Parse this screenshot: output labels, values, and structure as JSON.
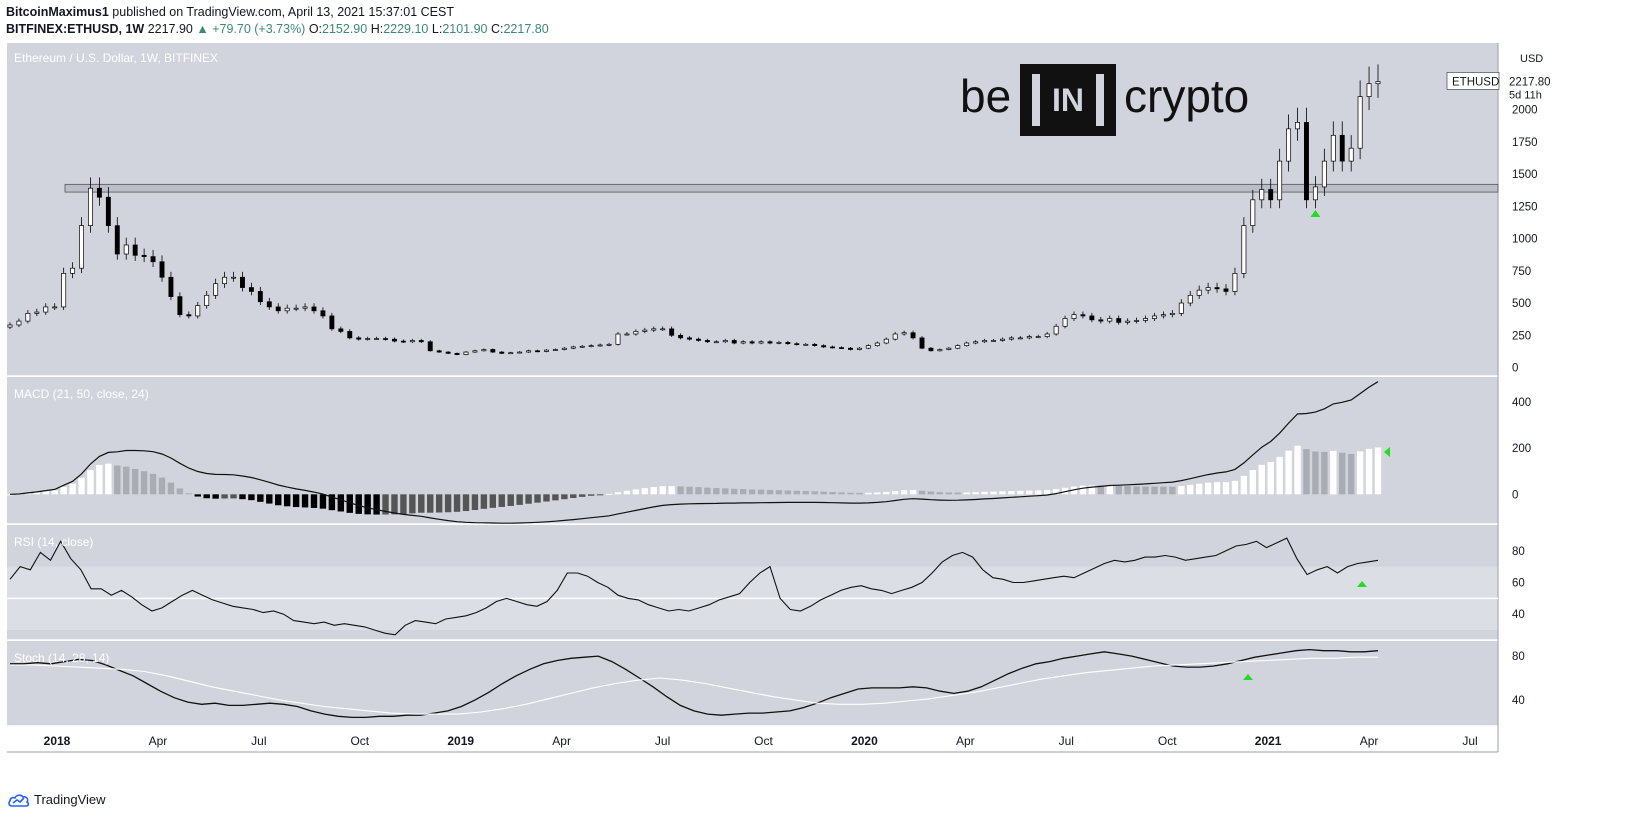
{
  "header": {
    "author": "BitcoinMaximus1",
    "published": "published on TradingView.com, April 13, 2021 15:37:01 CEST",
    "symbol": "BITFINEX:ETHUSD, 1W",
    "last": "2217.90",
    "change": "+79.70 (+3.73%)",
    "o_label": "O:",
    "o": "2152.90",
    "h_label": "H:",
    "h": "2229.10",
    "l_label": "L:",
    "l": "2101.90",
    "c_label": "C:",
    "c": "2217.80"
  },
  "logo": {
    "left": "be",
    "middle": "IN",
    "right": "crypto"
  },
  "price_tag": {
    "symbol": "ETHUSD",
    "price": "2217.80",
    "countdown": "5d 11h"
  },
  "footer": {
    "brand": "TradingView"
  },
  "colors": {
    "pane_bg": "#d1d4dc",
    "rsi_band": "#dbdee5",
    "up_candle": "#ffffff",
    "down_candle": "#000000",
    "signal_arrow": "#22dd22",
    "value_text": "#3a8a72"
  },
  "chart_data": [
    {
      "type": "candlestick",
      "title": "Ethereum / U.S. Dollar, 1W, BITFINEX",
      "ylabel": "USD",
      "ylim": [
        -50,
        2500
      ],
      "yticks": [
        0,
        250,
        500,
        750,
        1000,
        1250,
        1500,
        1750,
        2000
      ],
      "xticks": [
        "2018",
        "Apr",
        "Jul",
        "Oct",
        "2019",
        "Apr",
        "Jul",
        "Oct",
        "2020",
        "Apr",
        "Jul",
        "Oct",
        "2021",
        "Apr",
        "Jul"
      ],
      "xtick_weeks": [
        7,
        20,
        33,
        46,
        59,
        72,
        85,
        99,
        111,
        124,
        137,
        151,
        163,
        176,
        189
      ],
      "resistance_zone": [
        1360,
        1420
      ],
      "close": [
        330,
        360,
        420,
        430,
        470,
        470,
        730,
        770,
        1100,
        1390,
        1320,
        1100,
        880,
        950,
        870,
        860,
        820,
        700,
        550,
        410,
        400,
        480,
        560,
        650,
        700,
        700,
        620,
        590,
        510,
        470,
        440,
        460,
        460,
        470,
        440,
        400,
        300,
        280,
        230,
        220,
        225,
        225,
        220,
        205,
        200,
        210,
        200,
        130,
        120,
        110,
        100,
        120,
        130,
        140,
        120,
        110,
        115,
        120,
        130,
        125,
        135,
        140,
        150,
        160,
        165,
        170,
        175,
        180,
        260,
        260,
        280,
        290,
        300,
        300,
        250,
        230,
        220,
        210,
        200,
        200,
        210,
        190,
        200,
        190,
        200,
        190,
        195,
        185,
        180,
        180,
        170,
        160,
        155,
        150,
        140,
        150,
        170,
        190,
        220,
        260,
        270,
        230,
        150,
        130,
        140,
        150,
        170,
        190,
        200,
        210,
        210,
        220,
        230,
        230,
        240,
        240,
        260,
        320,
        380,
        410,
        400,
        370,
        360,
        380,
        350,
        360,
        365,
        380,
        400,
        410,
        420,
        500,
        560,
        600,
        620,
        610,
        590,
        730,
        1100,
        1300,
        1380,
        1300,
        1600,
        1850,
        1900,
        1300,
        1400,
        1600,
        1800,
        1600,
        1700,
        2100,
        2200,
        2217
      ]
    },
    {
      "type": "line+histogram",
      "title": "MACD (21, 50, close, 24)",
      "ylim": [
        -120,
        500
      ],
      "yticks": [
        0,
        200,
        400
      ],
      "signal_arrow": "left"
    },
    {
      "type": "line",
      "title": "RSI (14, close)",
      "ylim": [
        25,
        95
      ],
      "yticks": [
        40,
        60,
        80
      ],
      "band": [
        30,
        70
      ],
      "midline": 50,
      "values": [
        62,
        70,
        68,
        79,
        74,
        86,
        75,
        68,
        56,
        56,
        52,
        55,
        51,
        46,
        42,
        44,
        48,
        52,
        55,
        52,
        49,
        47,
        45,
        44,
        43,
        41,
        42,
        40,
        36,
        35,
        34,
        35,
        33,
        34,
        33,
        32,
        30,
        28,
        27,
        33,
        36,
        35,
        34,
        37,
        38,
        39,
        41,
        44,
        48,
        50,
        48,
        46,
        45,
        48,
        55,
        66,
        66,
        64,
        60,
        57,
        52,
        50,
        49,
        46,
        44,
        42,
        43,
        42,
        44,
        46,
        49,
        51,
        53,
        60,
        66,
        70,
        50,
        43,
        42,
        45,
        49,
        52,
        55,
        57,
        58,
        56,
        55,
        53,
        55,
        57,
        60,
        66,
        73,
        77,
        79,
        76,
        68,
        63,
        62,
        60,
        60,
        61,
        62,
        63,
        64,
        63,
        66,
        69,
        72,
        74,
        73,
        74,
        76,
        76,
        77,
        76,
        74,
        75,
        76,
        77,
        80,
        83,
        84,
        86,
        82,
        85,
        88,
        75,
        65,
        68,
        70,
        66,
        70,
        72,
        73,
        74
      ]
    },
    {
      "type": "line",
      "title": "Stoch (14, 28, 14)",
      "ylim": [
        18,
        92
      ],
      "yticks": [
        40,
        80
      ],
      "series": [
        {
          "values": [
            73,
            73,
            74,
            73,
            75,
            77,
            76,
            72,
            67,
            62,
            55,
            48,
            42,
            38,
            36,
            37,
            35,
            35,
            36,
            37,
            36,
            34,
            30,
            27,
            25,
            24,
            24,
            25,
            25,
            26,
            26,
            28,
            30,
            34,
            40,
            47,
            55,
            62,
            68,
            73,
            76,
            78,
            79,
            80,
            75,
            68,
            60,
            52,
            43,
            35,
            30,
            27,
            26,
            27,
            28,
            28,
            29,
            30,
            33,
            37,
            42,
            46,
            50,
            51,
            51,
            51,
            52,
            51,
            48,
            46,
            48,
            52,
            58,
            64,
            69,
            73,
            75,
            78,
            80,
            82,
            84,
            82,
            80,
            77,
            74,
            71,
            70,
            70,
            71,
            73,
            76,
            79,
            81,
            83,
            85,
            86,
            85,
            85,
            84,
            84,
            85
          ]
        },
        {
          "values": [
            72,
            72,
            71,
            70,
            69,
            68,
            66,
            62,
            57,
            52,
            48,
            44,
            40,
            37,
            34,
            32,
            30,
            28,
            27,
            27,
            27,
            29,
            32,
            36,
            41,
            46,
            51,
            55,
            58,
            60,
            58,
            55,
            51,
            47,
            43,
            40,
            37,
            36,
            36,
            37,
            39,
            41,
            44,
            47,
            51,
            55,
            59,
            62,
            65,
            67,
            69,
            71,
            72,
            73,
            74,
            75,
            76,
            77,
            78,
            78,
            79,
            79
          ]
        }
      ],
      "signal_arrow": "up"
    }
  ]
}
